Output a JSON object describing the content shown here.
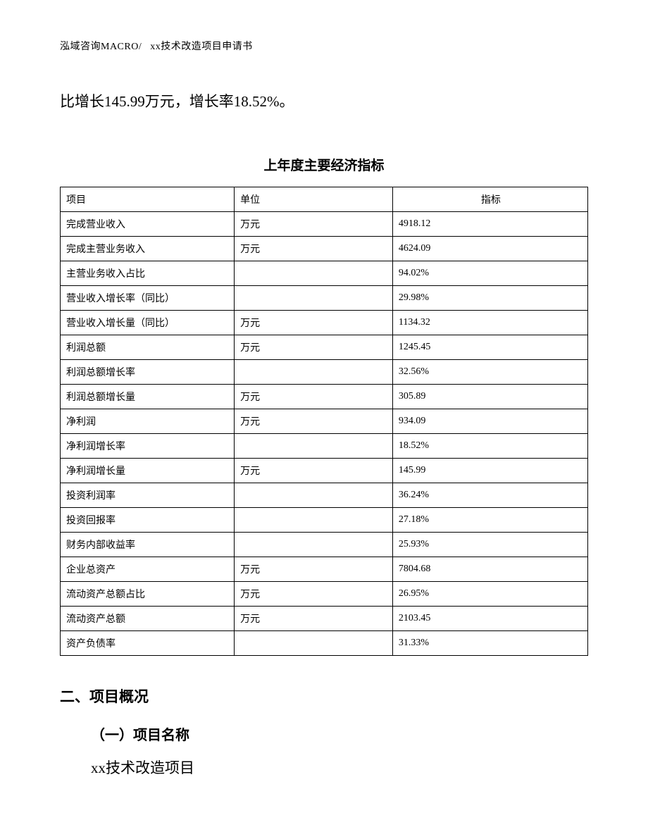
{
  "header": {
    "left": "泓域咨询MACRO/",
    "right": "xx技术改造项目申请书"
  },
  "body_paragraph": "比增长145.99万元，增长率18.52%。",
  "table": {
    "title": "上年度主要经济指标",
    "columns": [
      "项目",
      "单位",
      "指标"
    ],
    "column_widths_pct": [
      33,
      30,
      37
    ],
    "header_align": [
      "left",
      "left",
      "center"
    ],
    "cell_align": [
      "left",
      "left",
      "left"
    ],
    "font_size_pt": 14,
    "border_color": "#000000",
    "rows": [
      [
        "完成营业收入",
        "万元",
        "4918.12"
      ],
      [
        "完成主营业务收入",
        "万元",
        "4624.09"
      ],
      [
        "主营业务收入占比",
        "",
        "94.02%"
      ],
      [
        "营业收入增长率（同比）",
        "",
        "29.98%"
      ],
      [
        "营业收入增长量（同比）",
        "万元",
        "1134.32"
      ],
      [
        "利润总额",
        "万元",
        "1245.45"
      ],
      [
        "利润总额增长率",
        "",
        "32.56%"
      ],
      [
        "利润总额增长量",
        "万元",
        "305.89"
      ],
      [
        "净利润",
        "万元",
        "934.09"
      ],
      [
        "净利润增长率",
        "",
        "18.52%"
      ],
      [
        "净利润增长量",
        "万元",
        "145.99"
      ],
      [
        "投资利润率",
        "",
        "36.24%"
      ],
      [
        "投资回报率",
        "",
        "27.18%"
      ],
      [
        "财务内部收益率",
        "",
        "25.93%"
      ],
      [
        "企业总资产",
        "万元",
        "7804.68"
      ],
      [
        "流动资产总额占比",
        "万元",
        "26.95%"
      ],
      [
        "流动资产总额",
        "万元",
        "2103.45"
      ],
      [
        "资产负债率",
        "",
        "31.33%"
      ]
    ]
  },
  "sections": {
    "h2": "二、项目概况",
    "h3": "（一）项目名称",
    "project_name": "xx技术改造项目"
  },
  "page_background": "#ffffff",
  "text_color": "#000000"
}
